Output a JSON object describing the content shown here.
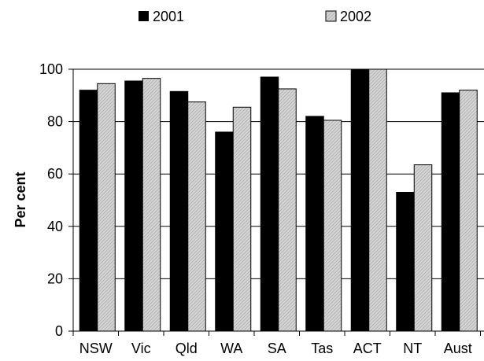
{
  "chart_data": {
    "type": "bar",
    "title": "",
    "xlabel": "",
    "ylabel": "Per cent",
    "categories": [
      "NSW",
      "Vic",
      "Qld",
      "WA",
      "SA",
      "Tas",
      "ACT",
      "NT",
      "Aust"
    ],
    "series": [
      {
        "name": "2001",
        "values": [
          92,
          95.5,
          91.5,
          76,
          97,
          82,
          100,
          53,
          91
        ],
        "color": "#000000",
        "pattern": "solid"
      },
      {
        "name": "2002",
        "values": [
          94.5,
          96.5,
          87.5,
          85.5,
          92.5,
          80.5,
          100,
          63.5,
          92
        ],
        "color": "#c8c8c8",
        "pattern": "hatched"
      }
    ],
    "ylim": [
      0,
      100
    ],
    "yticks": [
      0,
      20,
      40,
      60,
      80,
      100
    ],
    "grid": true,
    "legend_position": "top"
  }
}
